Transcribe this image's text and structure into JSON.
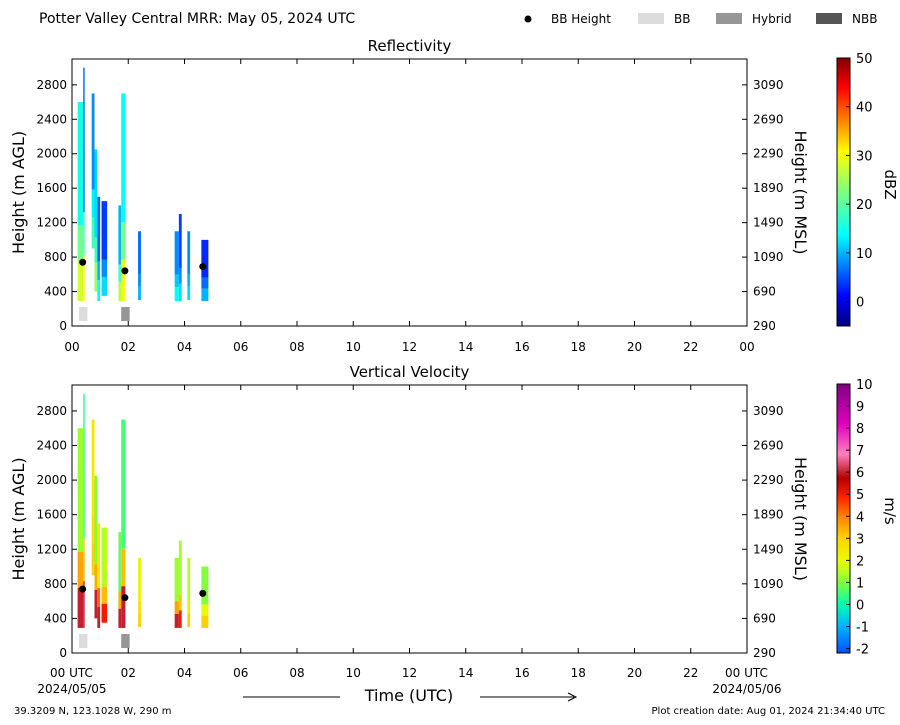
{
  "figure": {
    "title": "Potter Valley Central MRR:  May 05, 2024 UTC",
    "footer_left": "39.3209 N, 123.1028 W, 290 m",
    "footer_right": "Plot creation date: Aug 01, 2024 21:34:40 UTC",
    "legend": [
      {
        "label": "BB Height",
        "marker": "dot",
        "color": "#000000"
      },
      {
        "label": "BB",
        "marker": "box",
        "color": "#dcdcdc"
      },
      {
        "label": "Hybrid",
        "marker": "box",
        "color": "#969696"
      },
      {
        "label": "NBB",
        "marker": "box",
        "color": "#555555"
      }
    ]
  },
  "chart_data": [
    {
      "type": "heatmap",
      "title": "Reflectivity",
      "ylabel": "Height (m AGL)",
      "ylabel_right": "Height (m MSL)",
      "colorbar_label": "dBZ",
      "x_ticks": [
        "00",
        "02",
        "04",
        "06",
        "08",
        "10",
        "12",
        "14",
        "16",
        "18",
        "20",
        "22",
        "00"
      ],
      "x_tick_hours": [
        0,
        2,
        4,
        6,
        8,
        10,
        12,
        14,
        16,
        18,
        20,
        22,
        24
      ],
      "xlim_hours": [
        0,
        24
      ],
      "ylim": [
        0,
        3100
      ],
      "y_ticks": [
        0,
        400,
        800,
        1200,
        1600,
        2000,
        2400,
        2800
      ],
      "y_ticks_right": [
        290,
        690,
        1090,
        1490,
        1890,
        2290,
        2690,
        3090
      ],
      "colorbar_ticks": [
        0,
        10,
        20,
        30,
        40,
        50
      ],
      "colorbar_range": [
        -5,
        50
      ],
      "colormap": "jet",
      "echo_columns": [
        {
          "t0": 0.2,
          "t1": 0.4,
          "bottom": 290,
          "top": 2600,
          "value": 15,
          "base_value": 28
        },
        {
          "t0": 0.4,
          "t1": 0.45,
          "bottom": 290,
          "top": 3000,
          "value": 6,
          "base_value": 30
        },
        {
          "t0": 0.7,
          "t1": 0.8,
          "bottom": 900,
          "top": 2700,
          "value": 8,
          "base_value": 18
        },
        {
          "t0": 0.8,
          "t1": 0.9,
          "bottom": 400,
          "top": 2050,
          "value": 12,
          "base_value": 24
        },
        {
          "t0": 0.9,
          "t1": 1.0,
          "bottom": 290,
          "top": 1500,
          "value": 6,
          "base_value": 14
        },
        {
          "t0": 1.05,
          "t1": 1.25,
          "bottom": 350,
          "top": 1450,
          "value": 4,
          "base_value": 12
        },
        {
          "t0": 1.65,
          "t1": 1.75,
          "bottom": 290,
          "top": 1400,
          "value": 10,
          "base_value": 26
        },
        {
          "t0": 1.75,
          "t1": 1.9,
          "bottom": 290,
          "top": 2700,
          "value": 14,
          "base_value": 30
        },
        {
          "t0": 2.35,
          "t1": 2.45,
          "bottom": 300,
          "top": 1100,
          "value": 6,
          "base_value": 10
        },
        {
          "t0": 3.65,
          "t1": 3.8,
          "bottom": 290,
          "top": 1100,
          "value": 8,
          "base_value": 14
        },
        {
          "t0": 3.8,
          "t1": 3.9,
          "bottom": 290,
          "top": 1300,
          "value": 4,
          "base_value": 12
        },
        {
          "t0": 4.1,
          "t1": 4.2,
          "bottom": 300,
          "top": 1100,
          "value": 8,
          "base_value": 12
        },
        {
          "t0": 4.6,
          "t1": 4.85,
          "bottom": 290,
          "top": 1000,
          "value": 3,
          "base_value": 10
        }
      ],
      "bb_height": [
        {
          "t": 0.38,
          "h": 740
        },
        {
          "t": 1.88,
          "h": 640
        },
        {
          "t": 4.65,
          "h": 690
        }
      ],
      "bb_flags": [
        {
          "t0": 0.25,
          "t1": 0.55,
          "class": "BB"
        },
        {
          "t0": 1.75,
          "t1": 2.05,
          "class": "Hybrid"
        }
      ]
    },
    {
      "type": "heatmap",
      "title": "Vertical Velocity",
      "xlabel": "Time (UTC)",
      "ylabel": "Height (m AGL)",
      "ylabel_right": "Height (m MSL)",
      "colorbar_label": "m/s",
      "x_ticks": [
        "00 UTC",
        "02",
        "04",
        "06",
        "08",
        "10",
        "12",
        "14",
        "16",
        "18",
        "20",
        "22",
        "00 UTC"
      ],
      "x_tick_hours": [
        0,
        2,
        4,
        6,
        8,
        10,
        12,
        14,
        16,
        18,
        20,
        22,
        24
      ],
      "x_sub_labels": {
        "start": "2024/05/05",
        "end": "2024/05/06"
      },
      "xlim_hours": [
        0,
        24
      ],
      "ylim": [
        0,
        3100
      ],
      "y_ticks": [
        0,
        400,
        800,
        1200,
        1600,
        2000,
        2400,
        2800
      ],
      "y_ticks_right": [
        290,
        690,
        1090,
        1490,
        1890,
        2290,
        2690,
        3090
      ],
      "colorbar_ticks": [
        -2,
        -1,
        0,
        1,
        2,
        3,
        4,
        5,
        6,
        7,
        8,
        9,
        10
      ],
      "colorbar_range": [
        -2.2,
        10
      ],
      "colormap": "velocity",
      "echo_columns": [
        {
          "t0": 0.2,
          "t1": 0.4,
          "bottom": 290,
          "top": 2600,
          "value": 1.2,
          "base_value": 6
        },
        {
          "t0": 0.4,
          "t1": 0.45,
          "bottom": 290,
          "top": 3000,
          "value": 0.3,
          "base_value": 6
        },
        {
          "t0": 0.7,
          "t1": 0.8,
          "bottom": 900,
          "top": 2700,
          "value": 2.5,
          "base_value": 3
        },
        {
          "t0": 0.8,
          "t1": 0.9,
          "bottom": 400,
          "top": 2050,
          "value": 1.0,
          "base_value": 6
        },
        {
          "t0": 0.9,
          "t1": 1.0,
          "bottom": 290,
          "top": 1500,
          "value": 2.5,
          "base_value": 6
        },
        {
          "t0": 1.05,
          "t1": 1.25,
          "bottom": 350,
          "top": 1450,
          "value": 1.5,
          "base_value": 5
        },
        {
          "t0": 1.65,
          "t1": 1.75,
          "bottom": 290,
          "top": 1400,
          "value": 0.8,
          "base_value": 6
        },
        {
          "t0": 1.75,
          "t1": 1.9,
          "bottom": 290,
          "top": 2700,
          "value": 0.5,
          "base_value": 6
        },
        {
          "t0": 2.35,
          "t1": 2.45,
          "bottom": 300,
          "top": 1100,
          "value": 2.2,
          "base_value": 3
        },
        {
          "t0": 3.65,
          "t1": 3.8,
          "bottom": 290,
          "top": 1100,
          "value": 1.2,
          "base_value": 6
        },
        {
          "t0": 3.8,
          "t1": 3.9,
          "bottom": 290,
          "top": 1300,
          "value": 1.3,
          "base_value": 5
        },
        {
          "t0": 4.1,
          "t1": 4.2,
          "bottom": 300,
          "top": 1100,
          "value": 1.5,
          "base_value": 3
        },
        {
          "t0": 4.6,
          "t1": 4.85,
          "bottom": 290,
          "top": 1000,
          "value": 1.0,
          "base_value": 3
        }
      ],
      "bb_height": [
        {
          "t": 0.38,
          "h": 740
        },
        {
          "t": 1.88,
          "h": 640
        },
        {
          "t": 4.65,
          "h": 690
        }
      ],
      "bb_flags": [
        {
          "t0": 0.25,
          "t1": 0.55,
          "class": "BB"
        },
        {
          "t0": 1.75,
          "t1": 2.05,
          "class": "Hybrid"
        }
      ]
    }
  ]
}
